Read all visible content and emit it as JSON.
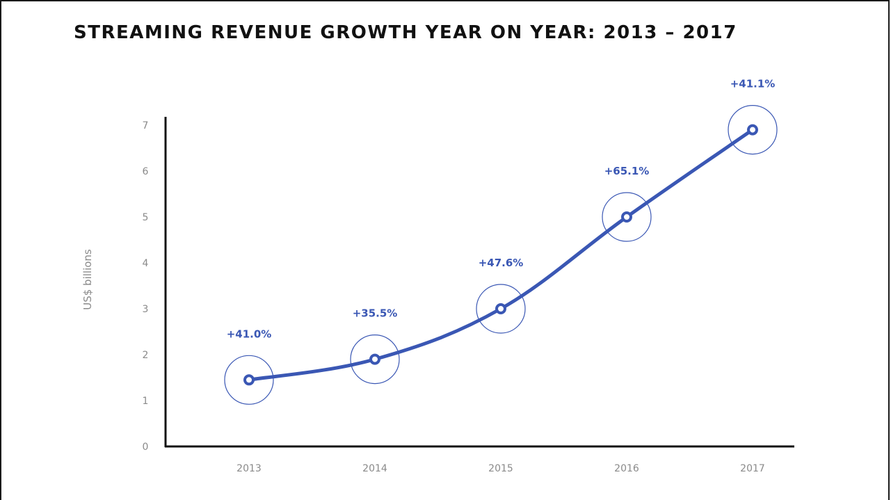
{
  "chart_data": {
    "type": "line",
    "title": "STREAMING REVENUE GROWTH YEAR ON YEAR: 2013 – 2017",
    "xlabel": "",
    "ylabel": "US$ billions",
    "categories": [
      "2013",
      "2014",
      "2015",
      "2016",
      "2017"
    ],
    "series": [
      {
        "values": [
          1.45,
          1.9,
          3.0,
          5.0,
          6.9
        ],
        "labels": [
          "+41.0%",
          "+35.5%",
          "+47.6%",
          "+65.1%",
          "+41.1%"
        ]
      }
    ],
    "ylim": [
      0,
      7
    ],
    "yticks": [
      0,
      1,
      2,
      3,
      4,
      5,
      6,
      7
    ],
    "grid": false,
    "legend": "none",
    "colors": {
      "line": "#3a57b4",
      "halo": "#3a57b4",
      "axis": "#111111",
      "tick_text": "#8a8a8a",
      "label_text": "#3a57b4"
    }
  }
}
